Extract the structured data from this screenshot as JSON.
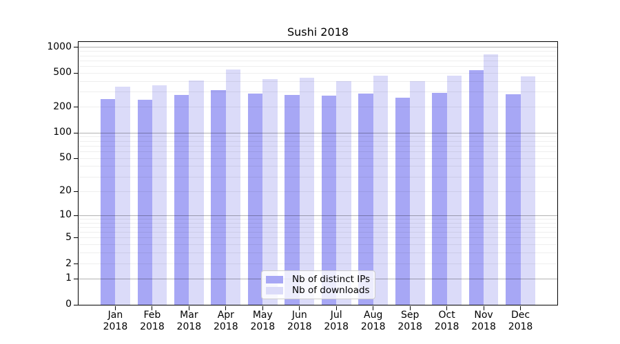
{
  "chart_data": {
    "type": "bar",
    "title": "Sushi 2018",
    "categories": [
      "Jan",
      "Feb",
      "Mar",
      "Apr",
      "May",
      "Jun",
      "Jul",
      "Aug",
      "Sep",
      "Oct",
      "Nov",
      "Dec"
    ],
    "category_year": "2018",
    "series": [
      {
        "name": "Nb of distinct IPs",
        "color": "#a7a7f5",
        "values": [
          250,
          245,
          280,
          317,
          290,
          277,
          274,
          288,
          261,
          296,
          545,
          286
        ]
      },
      {
        "name": "Nb of downloads",
        "color": "#dbdbf9",
        "values": [
          349,
          360,
          412,
          554,
          428,
          439,
          400,
          470,
          403,
          470,
          827,
          461
        ]
      }
    ],
    "yscale": "log1p",
    "ylim": [
      0,
      1158
    ],
    "yticks": [
      1000,
      500,
      200,
      100,
      50,
      20,
      10,
      5,
      2,
      1,
      0
    ],
    "grid": "horizontal, log minor + major decades",
    "grid_minor_values": [
      2,
      3,
      4,
      5,
      6,
      7,
      8,
      9,
      20,
      30,
      40,
      50,
      60,
      70,
      80,
      90,
      200,
      300,
      400,
      500,
      600,
      700,
      800,
      900
    ],
    "grid_major_values": [
      1,
      10,
      100,
      1000
    ],
    "legend_position": "lower center",
    "axis_color": "#000000"
  }
}
